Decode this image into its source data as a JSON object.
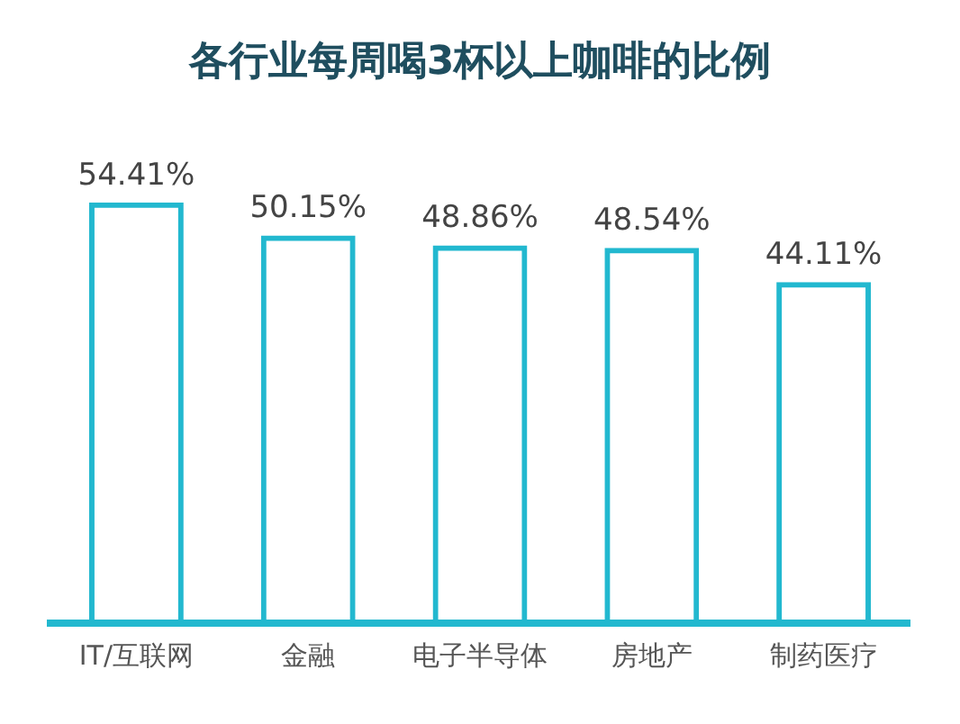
{
  "chart_data": {
    "type": "bar",
    "title": "各行业每周喝3杯以上咖啡的比例",
    "categories": [
      "IT/互联网",
      "金融",
      "电子半导体",
      "房地产",
      "制药医疗"
    ],
    "values": [
      54.41,
      50.15,
      48.86,
      48.54,
      44.11
    ],
    "value_labels": [
      "54.41%",
      "50.15%",
      "48.86%",
      "48.54%",
      "44.11%"
    ],
    "color": "#22b8cf",
    "grid": false,
    "legend": false
  }
}
